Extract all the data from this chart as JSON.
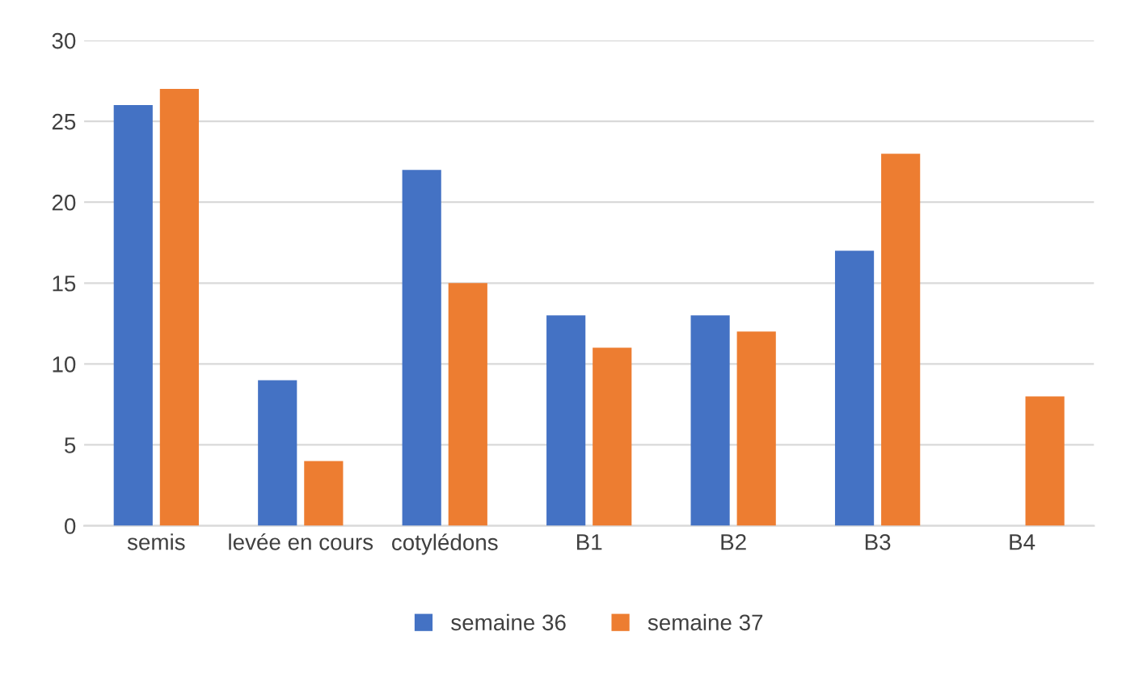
{
  "chart_data": {
    "type": "bar",
    "categories": [
      "semis",
      "levée en cours",
      "cotylédons",
      "B1",
      "B2",
      "B3",
      "B4"
    ],
    "series": [
      {
        "name": "semaine 36",
        "color": "#4472c4",
        "values": [
          26,
          9,
          22,
          13,
          13,
          17,
          null
        ]
      },
      {
        "name": "semaine 37",
        "color": "#ed7d31",
        "values": [
          27,
          4,
          15,
          11,
          12,
          23,
          8
        ]
      }
    ],
    "ylim": [
      0,
      30
    ],
    "yticks": [
      0,
      5,
      10,
      15,
      20,
      25,
      30
    ],
    "grid": "y",
    "legend": "bottom"
  }
}
